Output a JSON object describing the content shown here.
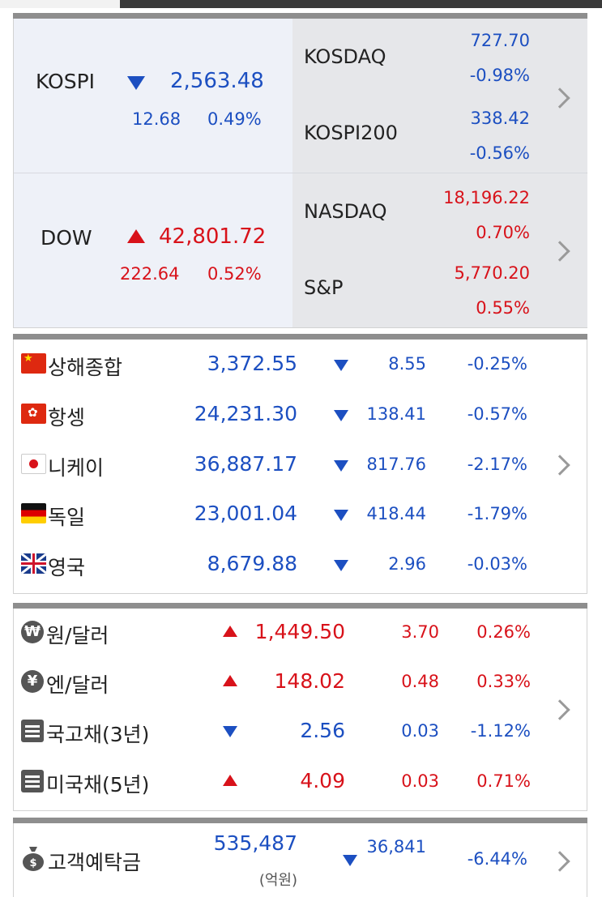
{
  "domestic": {
    "kospi": {
      "name": "KOSPI",
      "value": "2,563.48",
      "change": "12.68",
      "percent": "0.49%",
      "direction": "down"
    },
    "kosdaq": {
      "name": "KOSDAQ",
      "value": "727.70",
      "percent": "-0.98%"
    },
    "kospi200": {
      "name": "KOSPI200",
      "value": "338.42",
      "percent": "-0.56%"
    }
  },
  "us": {
    "dow": {
      "name": "DOW",
      "value": "42,801.72",
      "change": "222.64",
      "percent": "0.52%",
      "direction": "up"
    },
    "nasdaq": {
      "name": "NASDAQ",
      "value": "18,196.22",
      "percent": "0.70%"
    },
    "sp": {
      "name": "S&P",
      "value": "5,770.20",
      "percent": "0.55%"
    }
  },
  "world": [
    {
      "name": "상해종합",
      "flag": "china-flag-icon",
      "price": "3,372.55",
      "change": "8.55",
      "percent": "-0.25%",
      "direction": "down"
    },
    {
      "name": "항셍",
      "flag": "hongkong-flag-icon",
      "price": "24,231.30",
      "change": "138.41",
      "percent": "-0.57%",
      "direction": "down"
    },
    {
      "name": "니케이",
      "flag": "japan-flag-icon",
      "price": "36,887.17",
      "change": "817.76",
      "percent": "-2.17%",
      "direction": "down"
    },
    {
      "name": "독일",
      "flag": "germany-flag-icon",
      "price": "23,001.04",
      "change": "418.44",
      "percent": "-1.79%",
      "direction": "down"
    },
    {
      "name": "영국",
      "flag": "uk-flag-icon",
      "price": "8,679.88",
      "change": "2.96",
      "percent": "-0.03%",
      "direction": "down"
    }
  ],
  "fx": [
    {
      "name": "원/달러",
      "icon": "won-icon",
      "price": "1,449.50",
      "change": "3.70",
      "percent": "0.26%",
      "direction": "up"
    },
    {
      "name": "엔/달러",
      "icon": "yen-icon",
      "price": "148.02",
      "change": "0.48",
      "percent": "0.33%",
      "direction": "up"
    },
    {
      "name": "국고채(3년)",
      "icon": "bond-list-icon",
      "price": "2.56",
      "change": "0.03",
      "percent": "-1.12%",
      "direction": "down"
    },
    {
      "name": "미국채(5년)",
      "icon": "bond-list-icon",
      "price": "4.09",
      "change": "0.03",
      "percent": "0.71%",
      "direction": "up"
    }
  ],
  "deposit": {
    "name": "고객예탁금",
    "icon": "money-bag-icon",
    "value": "535,487",
    "unit": "(억원)",
    "change": "36,841",
    "percent": "-6.44%",
    "direction": "down"
  },
  "colors": {
    "up": "#d8121a",
    "down": "#1c4fc1"
  }
}
